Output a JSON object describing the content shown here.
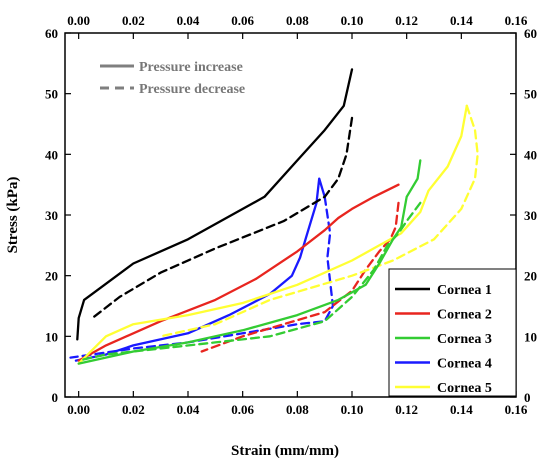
{
  "chart_data": {
    "type": "line",
    "title": "",
    "xlabel": "Strain (mm/mm)",
    "ylabel": "Stress (kPa)",
    "xlim": [
      -0.005,
      0.16
    ],
    "ylim": [
      0,
      60
    ],
    "x_ticks": [
      "0.00",
      "0.02",
      "0.04",
      "0.06",
      "0.08",
      "0.10",
      "0.12",
      "0.14",
      "0.16"
    ],
    "y_ticks": [
      "0",
      "10",
      "20",
      "30",
      "40",
      "50",
      "60"
    ],
    "x_tick_values": [
      0,
      0.02,
      0.04,
      0.06,
      0.08,
      0.1,
      0.12,
      0.14,
      0.16
    ],
    "y_tick_values": [
      0,
      10,
      20,
      30,
      40,
      50,
      60
    ],
    "grid": false,
    "mirror_axes": true,
    "line_styles": [
      {
        "label": "Pressure increase",
        "dash": "solid",
        "color": "#7f7f7f"
      },
      {
        "label": "Pressure decrease",
        "dash": "dashed",
        "color": "#7f7f7f"
      }
    ],
    "legend": {
      "position": "bottom-right"
    },
    "series": [
      {
        "name": "Cornea 1",
        "color": "#000000",
        "increase": {
          "x": [
            -0.0005,
            0.0,
            0.002,
            0.008,
            0.02,
            0.04,
            0.068,
            0.08,
            0.09,
            0.097,
            0.1
          ],
          "y": [
            9.5,
            13,
            16,
            18,
            22,
            26,
            33,
            39,
            44,
            48,
            54
          ]
        },
        "decrease": {
          "x": [
            0.1,
            0.098,
            0.095,
            0.09,
            0.075,
            0.05,
            0.03,
            0.015,
            0.005
          ],
          "y": [
            46,
            40,
            36,
            33,
            29,
            24.5,
            20.5,
            16.5,
            13
          ]
        }
      },
      {
        "name": "Cornea 2",
        "color": "#e8251f",
        "increase": {
          "x": [
            0.0,
            0.01,
            0.03,
            0.05,
            0.065,
            0.08,
            0.09,
            0.095,
            0.1,
            0.108,
            0.117
          ],
          "y": [
            6,
            8.5,
            12.5,
            16,
            19.5,
            24,
            27.5,
            29.5,
            31,
            33,
            35
          ]
        },
        "decrease": {
          "x": [
            0.117,
            0.116,
            0.114,
            0.11,
            0.105,
            0.1,
            0.09,
            0.075,
            0.06,
            0.045
          ],
          "y": [
            32,
            28,
            26,
            24,
            21,
            17.5,
            14,
            12,
            10,
            7.5
          ]
        }
      },
      {
        "name": "Cornea 3",
        "color": "#33cc33",
        "increase": {
          "x": [
            0.0,
            0.02,
            0.04,
            0.06,
            0.08,
            0.095,
            0.105,
            0.11,
            0.115,
            0.118,
            0.12,
            0.124,
            0.125
          ],
          "y": [
            5.5,
            7.5,
            9,
            11,
            13.5,
            16,
            18.5,
            22,
            26,
            28,
            33,
            36,
            39
          ]
        },
        "decrease": {
          "x": [
            0.125,
            0.12,
            0.117,
            0.113,
            0.108,
            0.1,
            0.09,
            0.07,
            0.05,
            0.03,
            0.01,
            0.0
          ],
          "y": [
            32,
            29,
            27,
            25,
            21,
            16.5,
            12.5,
            10,
            9,
            8,
            7,
            6
          ]
        }
      },
      {
        "name": "Cornea 4",
        "color": "#1a1aff",
        "increase": {
          "x": [
            -0.001,
            0.01,
            0.02,
            0.04,
            0.055,
            0.07,
            0.078,
            0.081,
            0.083,
            0.085,
            0.087,
            0.088,
            0.09
          ],
          "y": [
            6,
            7,
            8.5,
            10.5,
            13.5,
            17,
            20,
            23,
            26,
            29,
            32,
            36,
            33
          ]
        },
        "decrease": {
          "x": [
            0.09,
            0.092,
            0.091,
            0.093,
            0.09,
            0.08,
            0.06,
            0.04,
            0.02,
            0.005,
            -0.003
          ],
          "y": [
            33,
            27,
            23,
            15,
            12.5,
            12,
            10.5,
            9,
            8,
            7,
            6.5
          ]
        }
      },
      {
        "name": "Cornea 5",
        "color": "#ffff33",
        "increase": {
          "x": [
            0.0,
            0.01,
            0.02,
            0.04,
            0.06,
            0.08,
            0.1,
            0.118,
            0.125,
            0.128,
            0.135,
            0.14,
            0.142
          ],
          "y": [
            5.5,
            10,
            12,
            13.5,
            15.5,
            18.5,
            22.5,
            27,
            30.5,
            34,
            38,
            43,
            48
          ]
        },
        "decrease": {
          "x": [
            0.142,
            0.145,
            0.146,
            0.145,
            0.14,
            0.13,
            0.115,
            0.1,
            0.085,
            0.07,
            0.05,
            0.03
          ],
          "y": [
            48,
            44,
            40,
            36,
            31,
            26,
            22.5,
            20,
            18,
            16,
            12,
            10
          ]
        }
      }
    ]
  }
}
